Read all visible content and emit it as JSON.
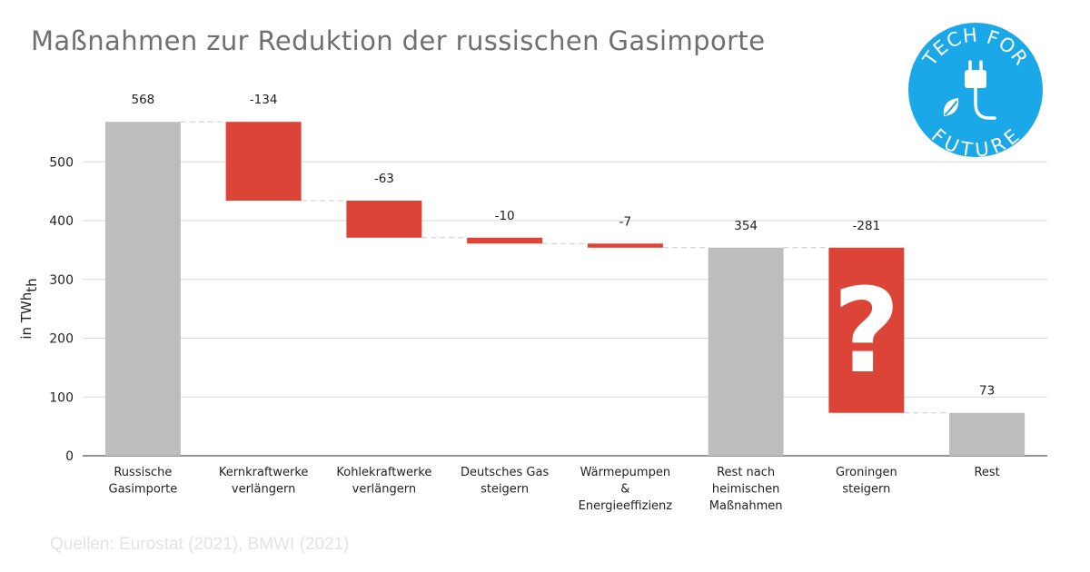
{
  "title": "Maßnahmen zur Reduktion der russischen Gasimporte",
  "source": "Quellen: Eurostat (2021), BMWI (2021)",
  "logo": {
    "text": "TECH FOR FUTURE",
    "color": "#1aa8e8",
    "icon": "plug-leaf-icon"
  },
  "colors": {
    "total": "#bdbdbd",
    "decrease": "#db4437",
    "grid": "#d9d9d9",
    "connector": "#cccccc"
  },
  "chart_data": {
    "type": "waterfall",
    "title": "Maßnahmen zur Reduktion der russischen Gasimporte",
    "ylabel": "in TWh",
    "ylabel_sub": "th",
    "ylim": [
      0,
      568
    ],
    "yticks": [
      "0",
      "100",
      "200",
      "300",
      "400",
      "500"
    ],
    "grid": true,
    "bars": [
      {
        "category": [
          "Russische",
          "Gasimporte"
        ],
        "kind": "total",
        "start": 0,
        "end": 568,
        "label": "568"
      },
      {
        "category": [
          "Kernkraftwerke",
          "verlängern"
        ],
        "kind": "decrease",
        "start": 568,
        "end": 434,
        "label": "-134"
      },
      {
        "category": [
          "Kohlekraftwerke",
          "verlängern"
        ],
        "kind": "decrease",
        "start": 434,
        "end": 371,
        "label": "-63"
      },
      {
        "category": [
          "Deutsches Gas",
          "steigern"
        ],
        "kind": "decrease",
        "start": 371,
        "end": 361,
        "label": "-10"
      },
      {
        "category": [
          "Wärmepumpen",
          "&",
          "Energieeffizienz"
        ],
        "kind": "decrease",
        "start": 361,
        "end": 354,
        "label": "-7"
      },
      {
        "category": [
          "Rest nach",
          "heimischen",
          "Maßnahmen"
        ],
        "kind": "total",
        "start": 0,
        "end": 354,
        "label": "354"
      },
      {
        "category": [
          "Groningen",
          "steigern"
        ],
        "kind": "decrease",
        "start": 354,
        "end": 73,
        "label": "-281",
        "overlay": "?"
      },
      {
        "category": [
          "Rest"
        ],
        "kind": "total",
        "start": 0,
        "end": 73,
        "label": "73"
      }
    ]
  }
}
